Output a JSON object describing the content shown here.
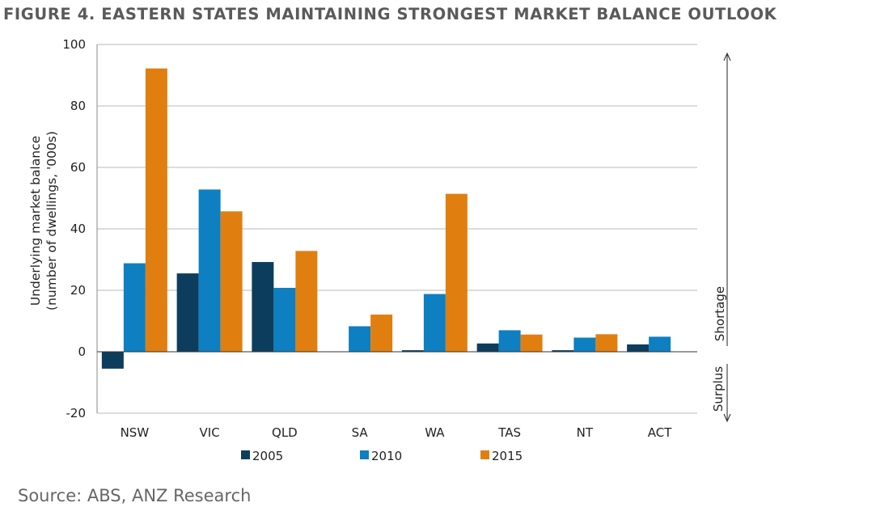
{
  "header": {
    "title": "FIGURE 4. EASTERN STATES MAINTAINING STRONGEST MARKET BALANCE OUTLOOK"
  },
  "footer": {
    "source": "Source: ABS, ANZ Research"
  },
  "chart_data": {
    "type": "bar",
    "title": "FIGURE 4. EASTERN STATES MAINTAINING STRONGEST MARKET BALANCE OUTLOOK",
    "ylabel": "Underlying market balance (number of dwellings, '000s)",
    "ylabel_lines": [
      "Underlying market balance",
      "(number of dwellings, '000s)"
    ],
    "xlabel": "",
    "categories": [
      "NSW",
      "VIC",
      "QLD",
      "SA",
      "WA",
      "TAS",
      "NT",
      "ACT"
    ],
    "series": [
      {
        "name": "2005",
        "color": "#0d3d5c",
        "values": [
          -5.5,
          25.5,
          29.2,
          0,
          0.5,
          2.7,
          0.5,
          2.4
        ]
      },
      {
        "name": "2010",
        "color": "#0e7fc0",
        "values": [
          28.8,
          52.8,
          20.8,
          8.3,
          18.8,
          7.0,
          4.6,
          4.9
        ]
      },
      {
        "name": "2015",
        "color": "#e07f10",
        "values": [
          92.2,
          45.7,
          32.8,
          12.1,
          51.4,
          5.6,
          5.7,
          null
        ]
      }
    ],
    "ylim": [
      -20,
      100
    ],
    "yticks": [
      -20,
      0,
      20,
      40,
      60,
      80,
      100
    ],
    "grid": true,
    "legend": "bottom",
    "side_labels": {
      "upper": "Shortage",
      "lower": "Surplus"
    }
  }
}
